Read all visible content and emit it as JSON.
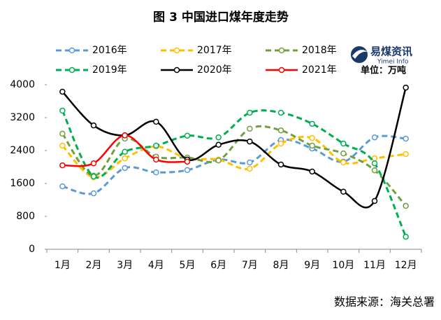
{
  "chart_data": {
    "type": "line",
    "title": "图 3  中国进口煤年度走势",
    "unit": "单位：万吨",
    "logo": {
      "name": "易煤资讯",
      "subname": "Yimei Info"
    },
    "source": "数据来源：海关总署",
    "categories": [
      "1月",
      "2月",
      "3月",
      "4月",
      "5月",
      "6月",
      "7月",
      "8月",
      "9月",
      "10月",
      "11月",
      "12月"
    ],
    "ylim": [
      0,
      4000
    ],
    "yticks": [
      0,
      800,
      1600,
      2400,
      3200,
      4000
    ],
    "smooth": true,
    "series": [
      {
        "name": "2016年",
        "color": "#5b9bd5",
        "line_style": "dashed",
        "values": [
          1530,
          1360,
          1975,
          1870,
          1925,
          2180,
          2110,
          2655,
          2450,
          2130,
          2720,
          2690
        ]
      },
      {
        "name": "2017年",
        "color": "#ffc000",
        "line_style": "dashed",
        "values": [
          2520,
          1750,
          2210,
          2500,
          2210,
          2180,
          1960,
          2570,
          2705,
          2110,
          2210,
          2315
        ]
      },
      {
        "name": "2018年",
        "color": "#70a040",
        "line_style": "dashed",
        "values": [
          2810,
          1790,
          2690,
          2250,
          2230,
          2160,
          2930,
          2890,
          2520,
          2330,
          1920,
          1055
        ]
      },
      {
        "name": "2019年",
        "color": "#00b050",
        "line_style": "dashed",
        "values": [
          3370,
          1770,
          2370,
          2520,
          2760,
          2720,
          3320,
          3320,
          3050,
          2570,
          2090,
          305
        ]
      },
      {
        "name": "2020年",
        "color": "#000000",
        "line_style": "solid",
        "values": [
          3830,
          3010,
          2770,
          3100,
          2180,
          2540,
          2620,
          2060,
          1890,
          1400,
          1175,
          3930
        ]
      },
      {
        "name": "2021年",
        "color": "#ff0000",
        "line_style": "solid",
        "values": [
          2040,
          2090,
          2770,
          2180,
          2130,
          null,
          null,
          null,
          null,
          null,
          null,
          null
        ]
      }
    ]
  }
}
